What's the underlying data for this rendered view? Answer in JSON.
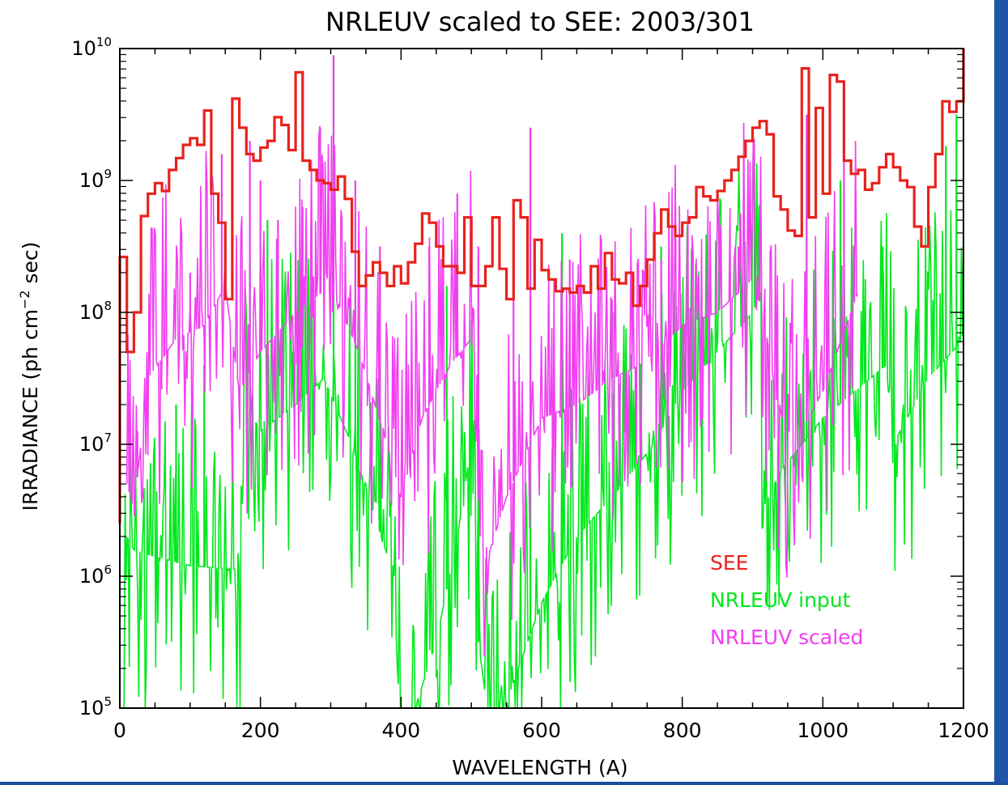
{
  "chart_data": {
    "type": "line",
    "title": "NRLEUV scaled to SEE: 2003/301",
    "xlabel": "WAVELENGTH (A)",
    "ylabel": "IRRADIANCE (ph cm⁻² sec)",
    "ylabel_parts": {
      "pre": "IRRADIANCE (ph cm",
      "sup": "−2",
      "post": " sec)"
    },
    "xlim": [
      0,
      1200
    ],
    "ylim_log10": [
      5,
      10
    ],
    "yscale": "log",
    "xticks": [
      0,
      200,
      400,
      600,
      800,
      1000,
      1200
    ],
    "xtick_labels": [
      "0",
      "200",
      "400",
      "600",
      "800",
      "1000",
      "1200"
    ],
    "ytick_exponents": [
      5,
      6,
      7,
      8,
      9,
      10
    ],
    "ytick_base": "10",
    "grid": false,
    "legend_position": "lower-right",
    "series": [
      {
        "name": "SEE",
        "color": "#e8221c",
        "style": "step",
        "bin_edges": [
          0,
          10,
          20,
          30,
          40,
          50,
          60,
          70,
          80,
          90,
          100,
          110,
          120,
          130,
          140,
          150,
          160,
          170,
          180,
          190,
          200,
          210,
          220,
          230,
          240,
          250,
          260,
          270,
          280,
          290,
          300,
          310,
          320,
          330,
          340,
          350,
          360,
          370,
          380,
          390,
          400,
          410,
          420,
          430,
          440,
          450,
          460,
          470,
          480,
          490,
          500,
          510,
          520,
          530,
          540,
          550,
          560,
          570,
          580,
          590,
          600,
          610,
          620,
          630,
          640,
          650,
          660,
          670,
          680,
          690,
          700,
          710,
          720,
          730,
          740,
          750,
          760,
          770,
          780,
          790,
          800,
          810,
          820,
          830,
          840,
          850,
          860,
          870,
          880,
          890,
          900,
          910,
          920,
          930,
          940,
          950,
          960,
          970,
          980,
          990,
          1000,
          1010,
          1020,
          1030,
          1040,
          1050,
          1060,
          1070,
          1080,
          1090,
          1100,
          1110,
          1120,
          1130,
          1140,
          1150,
          1160,
          1170,
          1180,
          1190,
          1200
        ],
        "log10_values": [
          8.42,
          7.7,
          8.0,
          8.73,
          8.9,
          8.98,
          8.92,
          9.08,
          9.17,
          9.27,
          9.32,
          9.27,
          9.53,
          8.9,
          8.68,
          8.1,
          9.62,
          9.4,
          9.2,
          9.15,
          9.25,
          9.3,
          9.48,
          9.42,
          9.23,
          9.82,
          9.15,
          9.08,
          9.0,
          8.98,
          8.93,
          9.03,
          8.86,
          8.46,
          8.2,
          8.28,
          8.38,
          8.3,
          8.2,
          8.35,
          8.22,
          8.38,
          8.52,
          8.75,
          8.68,
          8.5,
          8.35,
          8.35,
          8.3,
          8.72,
          8.2,
          8.2,
          8.35,
          8.72,
          8.33,
          8.1,
          8.85,
          8.72,
          8.18,
          8.55,
          8.32,
          8.25,
          8.16,
          8.18,
          8.15,
          8.2,
          8.15,
          8.35,
          8.18,
          8.45,
          8.25,
          8.22,
          8.3,
          8.05,
          8.2,
          8.4,
          8.6,
          8.78,
          8.65,
          8.58,
          8.68,
          8.72,
          8.95,
          8.88,
          8.85,
          8.92,
          9.0,
          9.08,
          9.18,
          9.3,
          9.4,
          9.45,
          9.35,
          8.88,
          8.78,
          8.62,
          8.58,
          9.85,
          8.72,
          9.55,
          8.9,
          9.8,
          9.75,
          9.15,
          9.05,
          9.08,
          8.93,
          8.98,
          9.1,
          9.2,
          9.1,
          9.0,
          8.95,
          8.65,
          8.5,
          8.95,
          9.2,
          9.6,
          9.52,
          9.6,
          10.0
        ]
      },
      {
        "name": "NRLEUV input",
        "color": "#00e81c",
        "style": "spiky",
        "points": [
          [
            0,
            3.0
          ],
          [
            10,
            6.3
          ],
          [
            20,
            6.2
          ],
          [
            50,
            6.15
          ],
          [
            100,
            6.08
          ],
          [
            170,
            6.05
          ],
          [
            180,
            7.3
          ],
          [
            200,
            7.1
          ],
          [
            250,
            7.3
          ],
          [
            290,
            7.5
          ],
          [
            330,
            7.0
          ],
          [
            360,
            6.5
          ],
          [
            390,
            6.0
          ],
          [
            400,
            4.5
          ],
          [
            420,
            5.0
          ],
          [
            450,
            5.5
          ],
          [
            480,
            6.3
          ],
          [
            500,
            7.0
          ],
          [
            510,
            5.5
          ],
          [
            530,
            4.7
          ],
          [
            560,
            5.2
          ],
          [
            600,
            5.8
          ],
          [
            650,
            6.3
          ],
          [
            700,
            6.6
          ],
          [
            760,
            7.0
          ],
          [
            800,
            7.4
          ],
          [
            850,
            7.7
          ],
          [
            900,
            8.0
          ],
          [
            912,
            8.15
          ],
          [
            914,
            6.5
          ],
          [
            940,
            6.8
          ],
          [
            1000,
            7.2
          ],
          [
            1090,
            7.6
          ],
          [
            1100,
            7.0
          ],
          [
            1150,
            7.5
          ],
          [
            1200,
            7.8
          ]
        ],
        "peaks": [
          [
            80,
            7.3
          ],
          [
            120,
            7.6
          ],
          [
            185,
            8.4
          ],
          [
            210,
            8.7
          ],
          [
            260,
            8.6
          ],
          [
            304,
            9.93
          ],
          [
            335,
            8.7
          ],
          [
            370,
            8.4
          ],
          [
            465,
            8.2
          ],
          [
            510,
            8.4
          ],
          [
            584,
            9.38
          ],
          [
            629,
            8.6
          ],
          [
            703,
            8.0
          ],
          [
            770,
            8.5
          ],
          [
            835,
            8.0
          ],
          [
            977,
            9.3
          ],
          [
            1025,
            9.0
          ],
          [
            1085,
            8.5
          ],
          [
            1175,
            9.26
          ],
          [
            1190,
            9.5
          ]
        ]
      },
      {
        "name": "NRLEUV scaled",
        "color": "#f23ef2",
        "style": "spiky",
        "points": [
          [
            10,
            6.7
          ],
          [
            20,
            6.5
          ],
          [
            40,
            7.5
          ],
          [
            80,
            7.8
          ],
          [
            120,
            7.9
          ],
          [
            150,
            8.2
          ],
          [
            170,
            7.4
          ],
          [
            200,
            7.7
          ],
          [
            250,
            8.0
          ],
          [
            300,
            8.2
          ],
          [
            340,
            7.7
          ],
          [
            380,
            7.0
          ],
          [
            400,
            6.6
          ],
          [
            430,
            7.2
          ],
          [
            470,
            7.6
          ],
          [
            500,
            7.8
          ],
          [
            515,
            6.0
          ],
          [
            550,
            6.6
          ],
          [
            600,
            7.2
          ],
          [
            650,
            7.3
          ],
          [
            700,
            7.5
          ],
          [
            740,
            7.6
          ],
          [
            800,
            7.9
          ],
          [
            850,
            8.0
          ],
          [
            900,
            8.25
          ],
          [
            915,
            8.0
          ],
          [
            935,
            7.3
          ],
          [
            960,
            7.0
          ],
          [
            1000,
            7.4
          ],
          [
            1050,
            8.15
          ]
        ],
        "peaks": [
          [
            25,
            7.1
          ],
          [
            100,
            8.3
          ],
          [
            145,
            9.2
          ],
          [
            185,
            9.3
          ],
          [
            200,
            9.0
          ],
          [
            225,
            8.7
          ],
          [
            260,
            8.8
          ],
          [
            285,
            9.4
          ],
          [
            304,
            9.95
          ],
          [
            335,
            9.0
          ],
          [
            370,
            8.5
          ],
          [
            440,
            8.5
          ],
          [
            480,
            8.9
          ],
          [
            510,
            8.5
          ],
          [
            560,
            8.3
          ],
          [
            584,
            9.4
          ],
          [
            640,
            8.4
          ],
          [
            700,
            8.1
          ],
          [
            770,
            8.4
          ],
          [
            880,
            8.5
          ],
          [
            910,
            8.6
          ],
          [
            977,
            9.5
          ],
          [
            1030,
            9.3
          ]
        ]
      }
    ]
  }
}
